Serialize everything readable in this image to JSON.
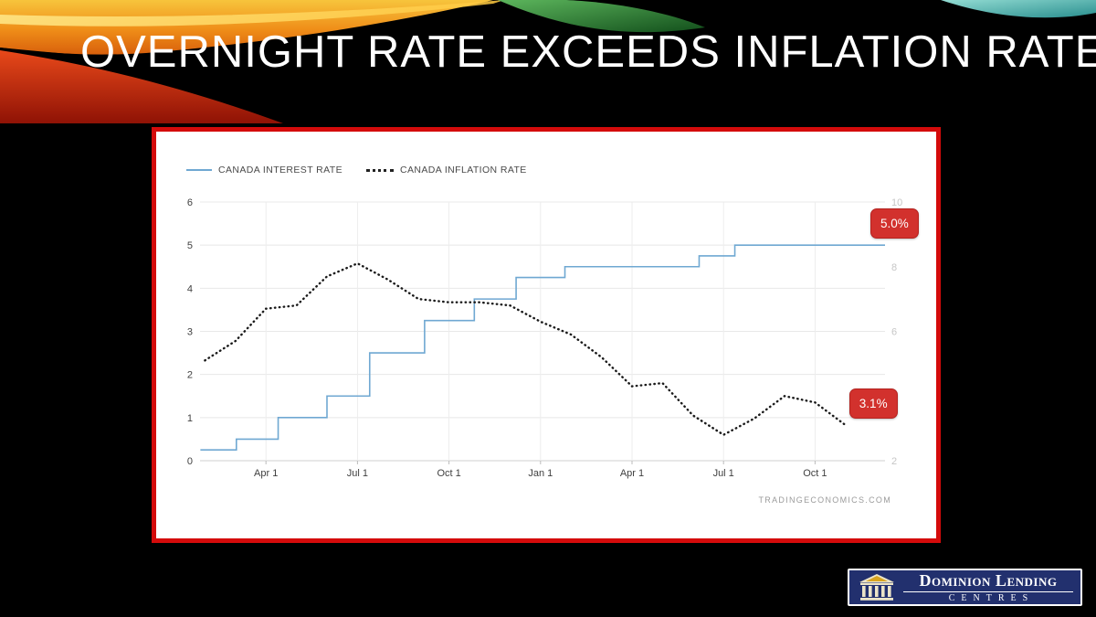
{
  "slide": {
    "title": "OVERNIGHT RATE EXCEEDS INFLATION RATE",
    "background_color": "#000000"
  },
  "chart": {
    "card_border_color": "#d40b0b",
    "badge_color": "#d2312d",
    "watermark": "TRADINGECONOMICS.COM"
  },
  "chart_data": {
    "type": "line",
    "title": "",
    "legend_position": "top-left",
    "grid": true,
    "legend": [
      {
        "label": "CANADA INTEREST RATE",
        "style": "solid",
        "color": "#6FA8D2"
      },
      {
        "label": "CANADA INFLATION RATE",
        "style": "dotted",
        "color": "#1a1a1a"
      }
    ],
    "x_ticks": [
      {
        "month": 3,
        "label": "Apr 1"
      },
      {
        "month": 6,
        "label": "Jul 1"
      },
      {
        "month": 9,
        "label": "Oct 1"
      },
      {
        "month": 12,
        "label": "Jan 1"
      },
      {
        "month": 15,
        "label": "Apr 1"
      },
      {
        "month": 18,
        "label": "Jul 1"
      },
      {
        "month": 21,
        "label": "Oct 1"
      }
    ],
    "left_axis": {
      "range": [
        0,
        6
      ],
      "ticks": [
        0,
        1,
        2,
        3,
        4,
        5,
        6
      ]
    },
    "right_axis": {
      "range": [
        2,
        10
      ],
      "ticks": [
        2,
        4,
        6,
        8,
        10
      ]
    },
    "series": [
      {
        "name": "CANADA INTEREST RATE",
        "axis": "left",
        "line": "step",
        "color": "#6FA8D2",
        "steps": [
          {
            "month": 0.85,
            "rate": 0.25
          },
          {
            "month": 2.03,
            "rate": 0.5
          },
          {
            "month": 3.4,
            "rate": 1.0
          },
          {
            "month": 5.0,
            "rate": 1.5
          },
          {
            "month": 6.4,
            "rate": 2.5
          },
          {
            "month": 8.2,
            "rate": 3.25
          },
          {
            "month": 9.83,
            "rate": 3.75
          },
          {
            "month": 11.2,
            "rate": 4.25
          },
          {
            "month": 12.8,
            "rate": 4.5
          },
          {
            "month": 17.2,
            "rate": 4.75
          },
          {
            "month": 18.37,
            "rate": 5.0
          }
        ],
        "end_month": 23.3,
        "end_label": "5.0%"
      },
      {
        "name": "CANADA INFLATION RATE",
        "axis": "right",
        "line": "dotted",
        "color": "#1a1a1a",
        "plot_month_offset": 1,
        "values": [
          5.1,
          5.7,
          6.7,
          6.8,
          7.7,
          8.1,
          7.6,
          7.0,
          6.9,
          6.9,
          6.8,
          6.3,
          5.9,
          5.2,
          4.3,
          4.4,
          3.4,
          2.8,
          3.3,
          4.0,
          3.8,
          3.1
        ],
        "end_label": "3.1%"
      }
    ]
  },
  "logo": {
    "name": "Dominion Lending",
    "sub": "CENTRES"
  }
}
